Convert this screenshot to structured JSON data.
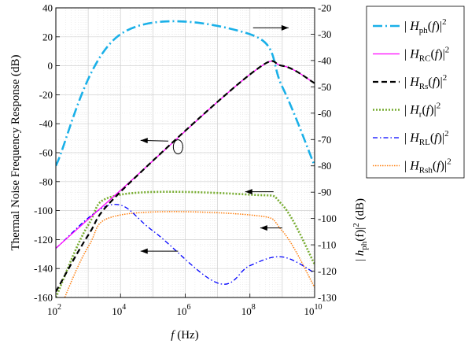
{
  "chart_data": {
    "type": "line",
    "title": "",
    "xlabel_italic": "f",
    "xlabel_unit": "(Hz)",
    "ylabel_left": "Thermal Noise Frequency Response (dB)",
    "ylabel_right": "|h_ph(f)|^2 (dB)",
    "ylabel_right_parts": {
      "open": "| ",
      "h": "h",
      "sub": "ph",
      "f": "(f)",
      "close": "|",
      "sup": "2",
      "unit": " (dB)"
    },
    "x_scale": "log",
    "xlim": [
      100,
      10000000000
    ],
    "xticks": [
      100,
      10000,
      1000000,
      100000000,
      10000000000
    ],
    "xtick_mantissa": "10",
    "xtick_exponents": [
      "2",
      "4",
      "6",
      "8",
      "10"
    ],
    "ylim_left": [
      -160,
      40
    ],
    "yticks_left": [
      "40",
      "20",
      "0",
      "-20",
      "-40",
      "-60",
      "-80",
      "-100",
      "-120",
      "-140",
      "-160"
    ],
    "ylim_right": [
      -130,
      -20
    ],
    "yticks_right": [
      "-20",
      "-30",
      "-40",
      "-50",
      "-60",
      "-70",
      "-80",
      "-90",
      "-100",
      "-110",
      "-120",
      "-130"
    ],
    "grid": true,
    "legend_position": "outside-right",
    "series": [
      {
        "name": "|H_ph(f)|^2",
        "sub": "ph",
        "axis": "right",
        "color": "#1ab0e8",
        "style": "dashdot-thick",
        "x": [
          100,
          10000,
          100000000,
          1000000000,
          10000000000
        ],
        "y": [
          -80,
          -30,
          -30,
          -50,
          -80
        ]
      },
      {
        "name": "|H_RC(f)|^2",
        "sub": "RC",
        "axis": "left",
        "color": "#ff00ff",
        "style": "solid",
        "x": [
          100,
          10000,
          100000000,
          1000000000,
          10000000000
        ],
        "y": [
          -126,
          -86,
          -6,
          0,
          -12
        ]
      },
      {
        "name": "|H_Rs(f)|^2",
        "sub": "Rs",
        "axis": "left",
        "color": "#000000",
        "style": "dashed-thick",
        "x": [
          100,
          1000,
          10000,
          100000000,
          1000000000,
          10000000000
        ],
        "y": [
          -156,
          -117,
          -87,
          -6,
          0,
          -12
        ]
      },
      {
        "name": "|H_r(f)|^2",
        "sub": "r",
        "axis": "left",
        "color": "#77ac30",
        "style": "dotted-thick",
        "x": [
          100,
          1000,
          10000,
          100000000,
          1000000000,
          10000000000
        ],
        "y": [
          -160,
          -110,
          -89,
          -89,
          -96,
          -137
        ]
      },
      {
        "name": "|H_RL(f)|^2",
        "sub": "RL",
        "axis": "left",
        "color": "#0000ff",
        "style": "dashdot",
        "x": [
          100,
          5000,
          100000,
          10000000,
          100000000,
          1000000000,
          10000000000
        ],
        "y": [
          -126,
          -96,
          -114,
          -150,
          -138,
          -132,
          -143
        ]
      },
      {
        "name": "|H_Rsh(f)|^2",
        "sub": "Rsh",
        "axis": "left",
        "color": "#ff7f0e",
        "style": "dotted",
        "x": [
          100,
          1000,
          10000,
          100000000,
          1000000000,
          10000000000
        ],
        "y": [
          -175,
          -125,
          -103,
          -103,
          -114,
          -153
        ]
      }
    ]
  }
}
